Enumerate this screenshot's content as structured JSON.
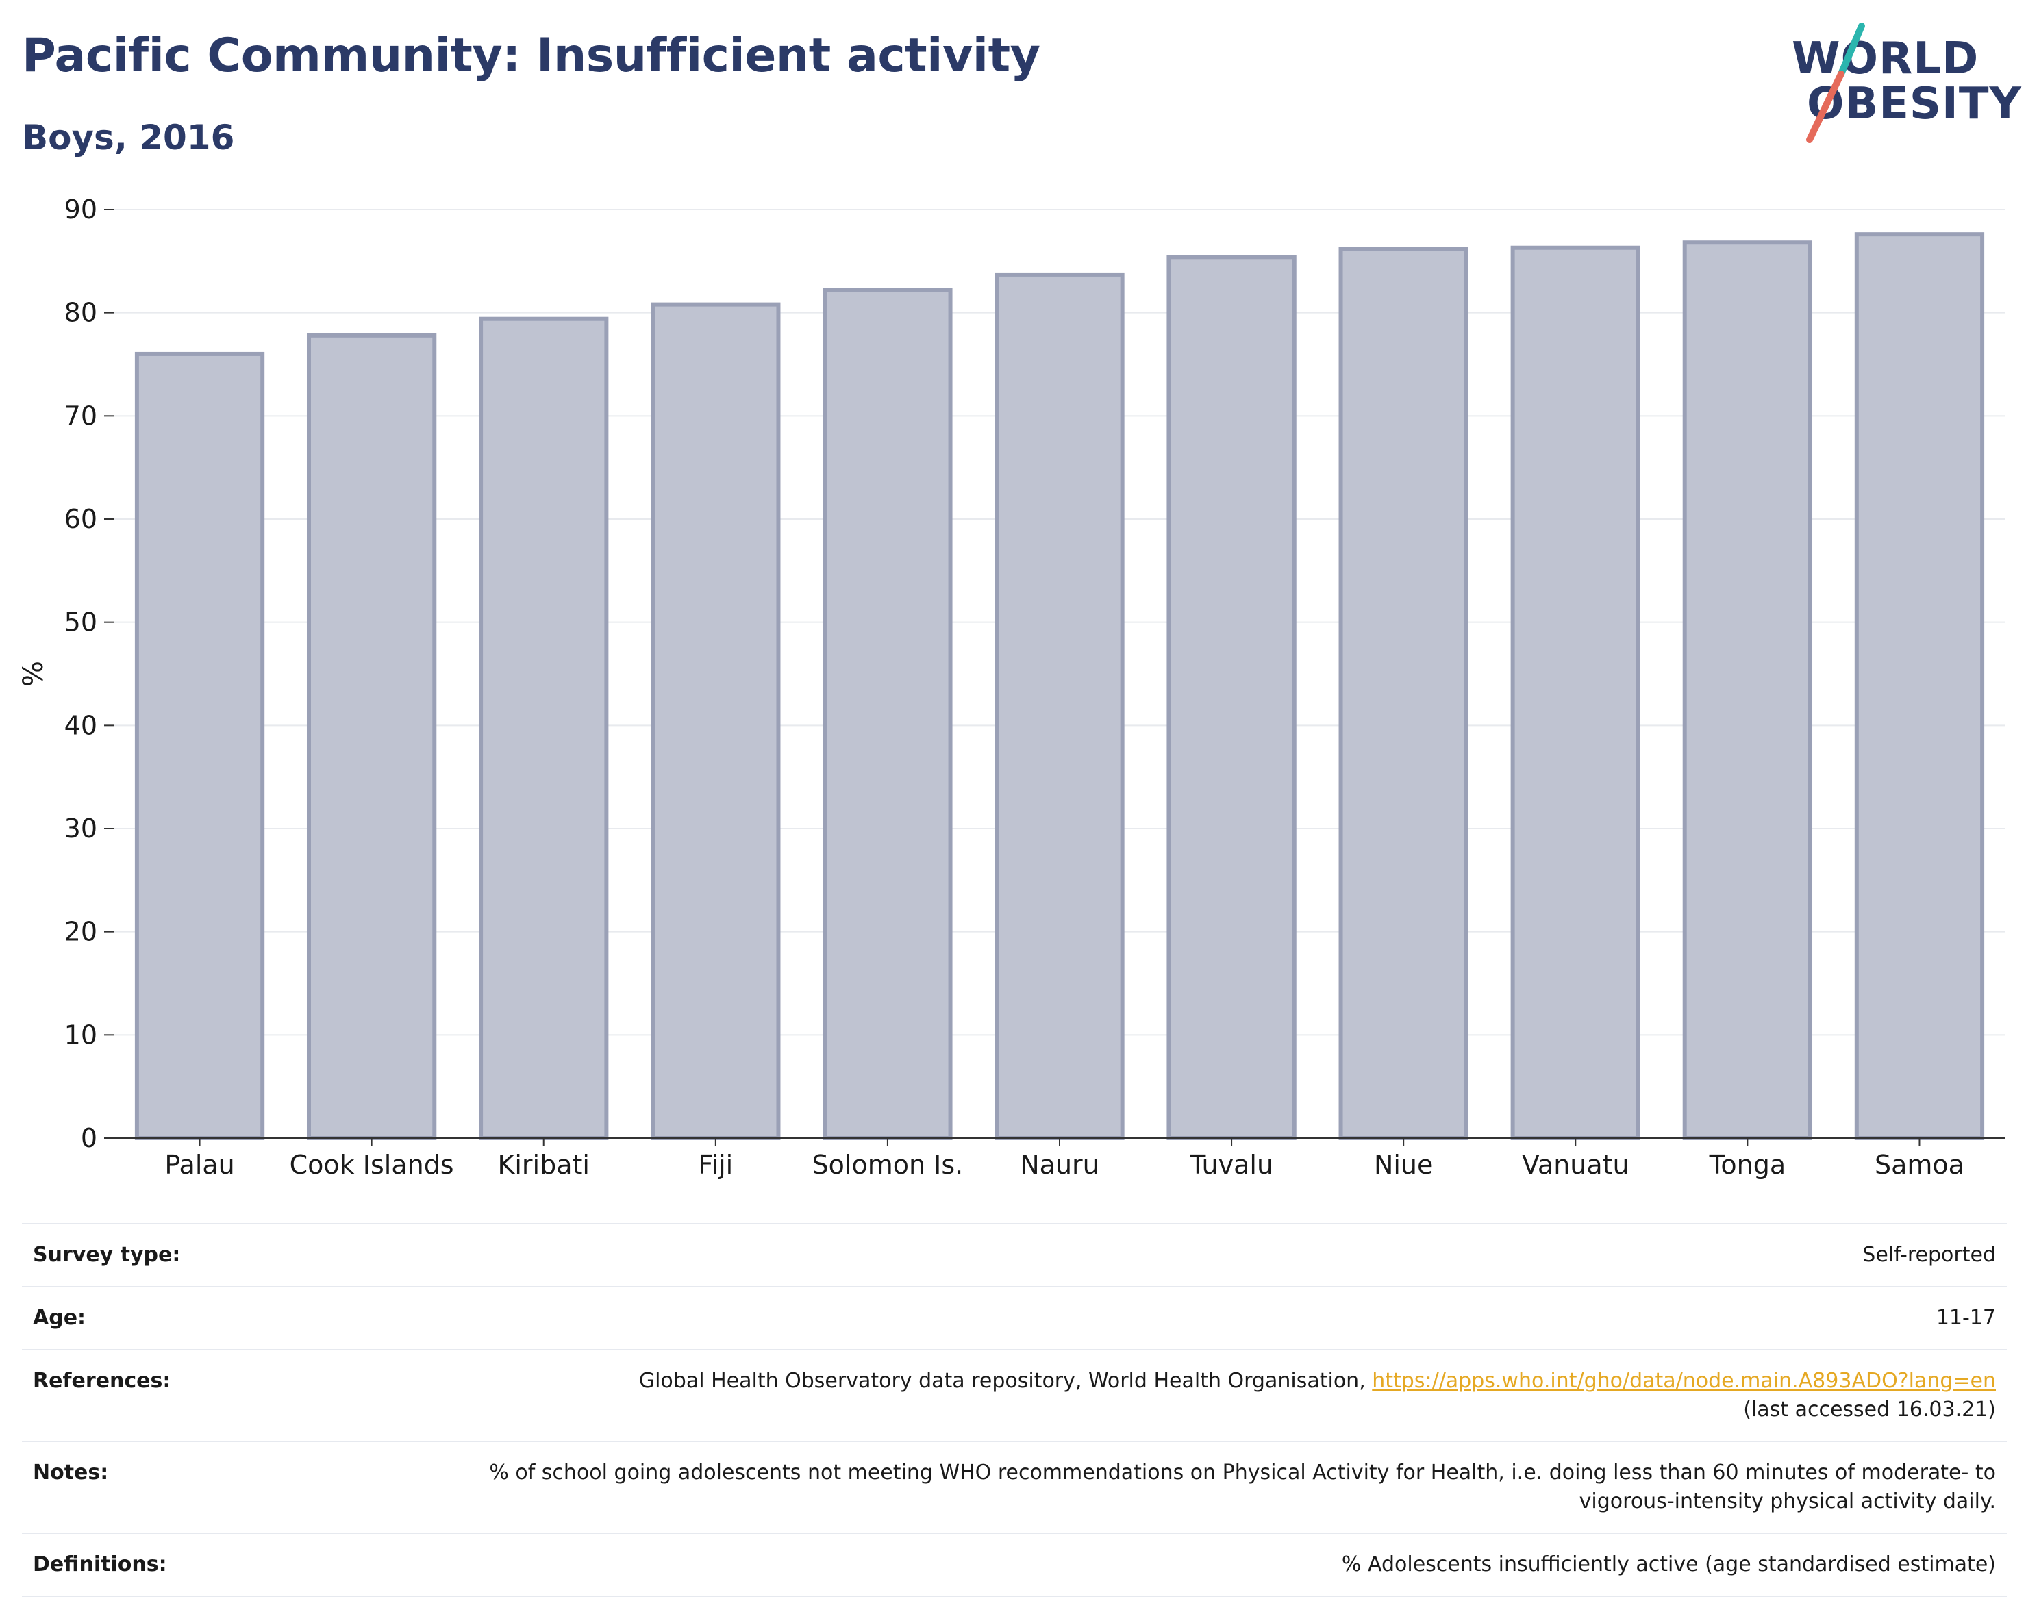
{
  "header": {
    "title": "Pacific Community: Insufficient activity",
    "subtitle": "Boys, 2016"
  },
  "logo": {
    "line1": "WORLD",
    "line2": "OBESITY",
    "accent_teal": "#2bb5ae",
    "accent_coral": "#e56a5a"
  },
  "chart_data": {
    "type": "bar",
    "categories": [
      "Palau",
      "Cook Islands",
      "Kiribati",
      "Fiji",
      "Solomon Is.",
      "Nauru",
      "Tuvalu",
      "Niue",
      "Vanuatu",
      "Tonga",
      "Samoa"
    ],
    "values": [
      76.0,
      77.8,
      79.4,
      80.8,
      82.2,
      83.7,
      85.4,
      86.2,
      86.3,
      86.8,
      87.6
    ],
    "ylabel": "%",
    "ylim": [
      0,
      90
    ],
    "yticks": [
      0,
      10,
      20,
      30,
      40,
      50,
      60,
      70,
      80,
      90
    ],
    "grid": true,
    "bar_fill": "#bfc3d1",
    "bar_stroke": "#9aa0b6"
  },
  "metadata": [
    {
      "key": "Survey type:",
      "value": "Self-reported"
    },
    {
      "key": "Age:",
      "value": "11-17"
    },
    {
      "key": "References:",
      "value": "Global Health Observatory data repository, World Health Organisation, ",
      "link": "https://apps.who.int/gho/data/node.main.A893ADO?lang=en",
      "suffix": "(last accessed 16.03.21)"
    },
    {
      "key": "Notes:",
      "value": "% of school going adolescents not meeting WHO recommendations on Physical Activity for Health, i.e. doing less than 60 minutes of moderate- to vigorous-intensity physical activity daily."
    },
    {
      "key": "Definitions:",
      "value": "% Adolescents insufficiently active (age standardised estimate)"
    }
  ]
}
